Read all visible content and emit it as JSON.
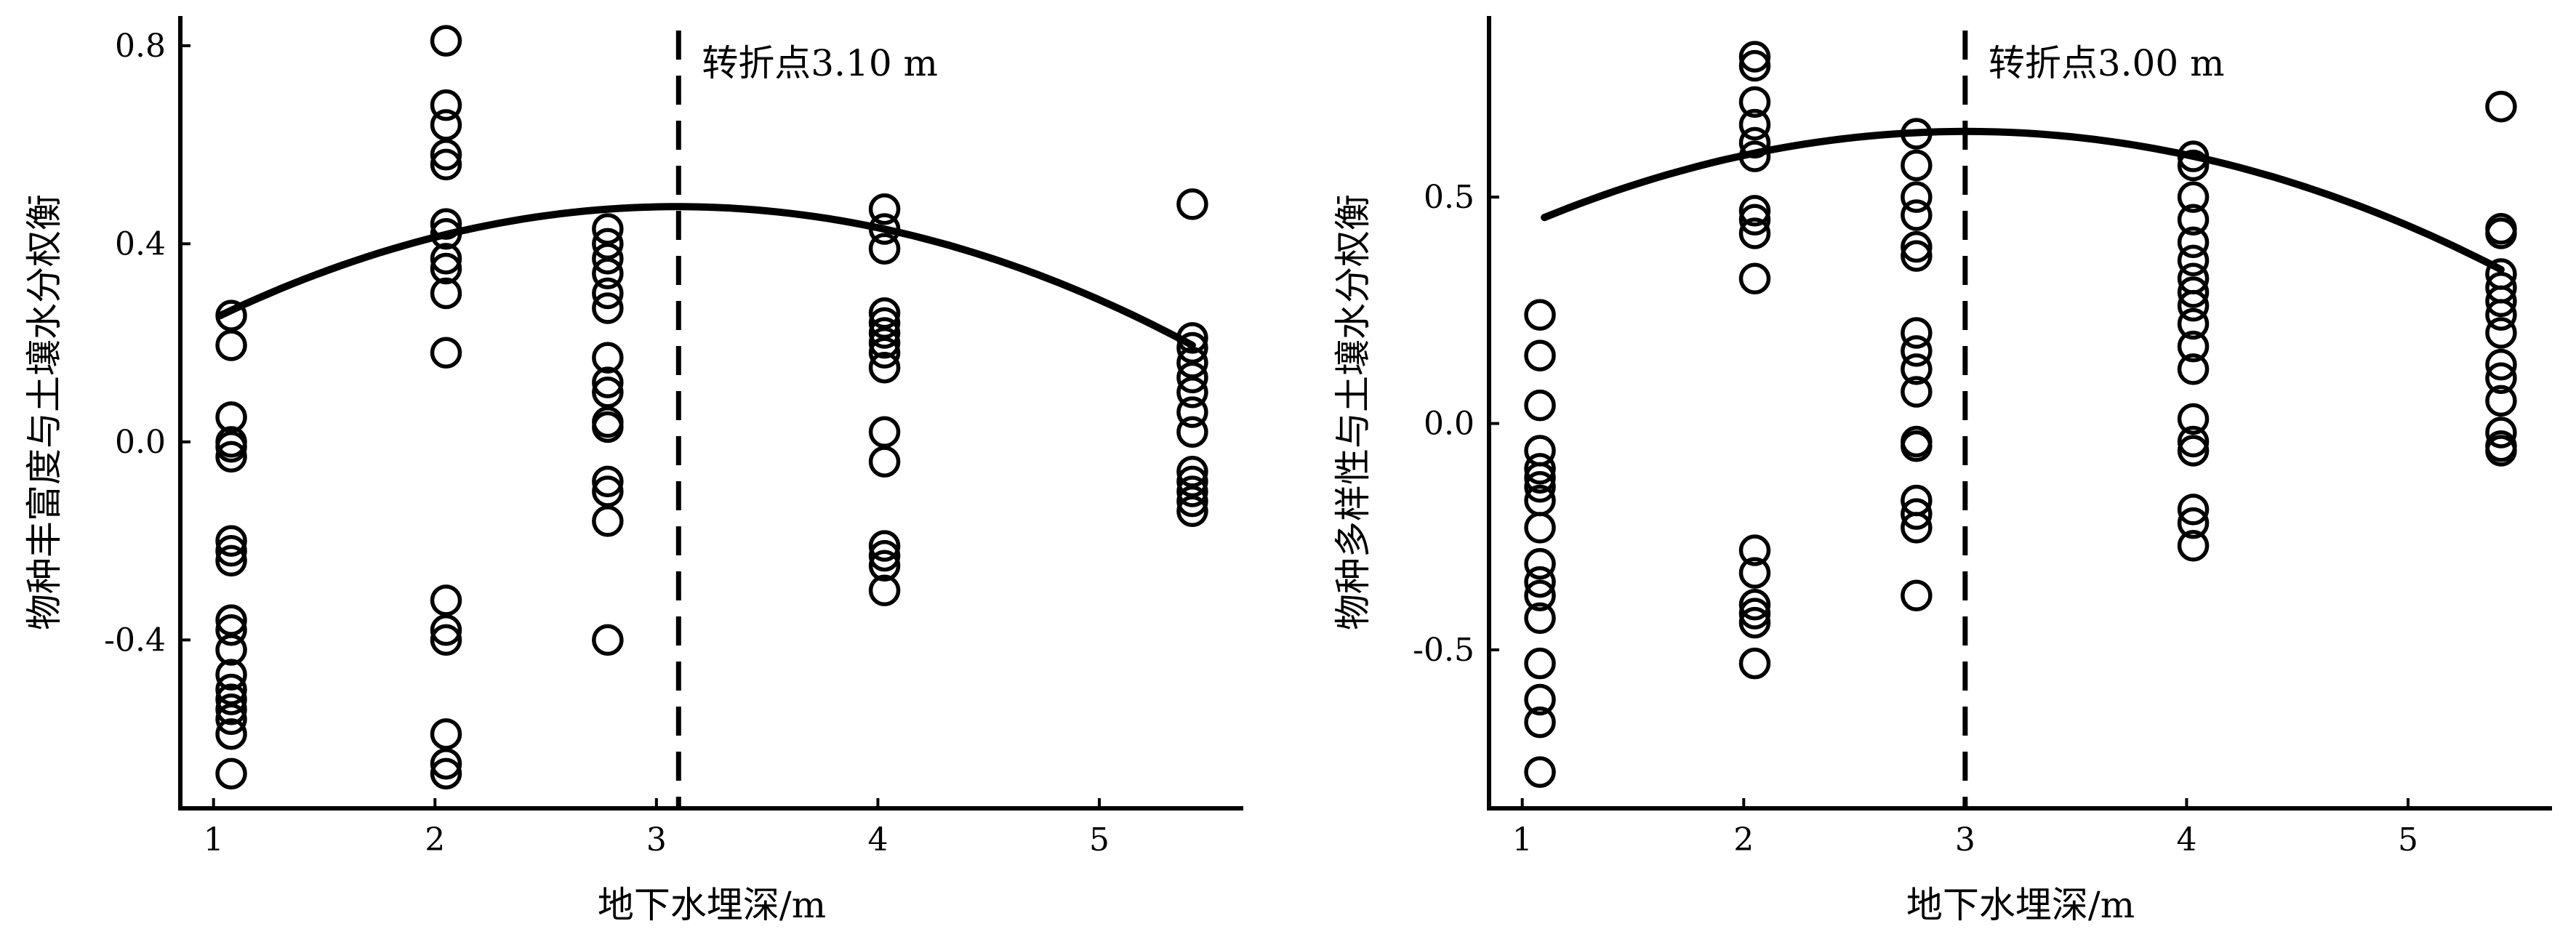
{
  "chart_data": [
    {
      "type": "scatter",
      "xlabel": "地下水埋深/m",
      "ylabel": "物种丰富度与土壤水分权衡",
      "xlim": [
        0.85,
        5.65
      ],
      "ylim": [
        -0.74,
        0.86
      ],
      "xticks": [
        "1",
        "2",
        "3",
        "4",
        "5"
      ],
      "yticks": [
        "0.8",
        "0.4",
        "0.0",
        "-0.4"
      ],
      "ytick_values": [
        0.8,
        0.4,
        0.0,
        -0.4
      ],
      "xtick_values": [
        1,
        2,
        3,
        4,
        5
      ],
      "threshold": {
        "x": 3.1,
        "label": "转折点3.10 m",
        "style": "dashed"
      },
      "fit": {
        "type": "quadratic",
        "x": [
          1.03,
          3.1,
          5.42
        ],
        "y": [
          0.255,
          0.475,
          0.195
        ]
      },
      "points": [
        {
          "x": 1.08,
          "y": [
            0.255,
            0.195,
            0.05,
            0.0,
            -0.01,
            -0.03,
            -0.2,
            -0.22,
            -0.24,
            -0.36,
            -0.38,
            -0.42,
            -0.47,
            -0.5,
            -0.52,
            -0.54,
            -0.56,
            -0.59,
            -0.67
          ]
        },
        {
          "x": 2.05,
          "y": [
            0.81,
            0.68,
            0.64,
            0.58,
            0.56,
            0.44,
            0.42,
            0.37,
            0.35,
            0.3,
            0.18,
            -0.32,
            -0.38,
            -0.4,
            -0.59,
            -0.65,
            -0.67
          ]
        },
        {
          "x": 2.78,
          "y": [
            0.43,
            0.4,
            0.37,
            0.34,
            0.3,
            0.27,
            0.17,
            0.12,
            0.1,
            0.04,
            0.03,
            -0.08,
            -0.1,
            -0.16,
            -0.4
          ]
        },
        {
          "x": 4.03,
          "y": [
            0.47,
            0.43,
            0.39,
            0.26,
            0.24,
            0.22,
            0.2,
            0.18,
            0.15,
            0.02,
            -0.04,
            -0.21,
            -0.23,
            -0.25,
            -0.3
          ]
        },
        {
          "x": 5.42,
          "y": [
            0.48,
            0.21,
            0.19,
            0.16,
            0.13,
            0.1,
            0.06,
            0.02,
            -0.06,
            -0.08,
            -0.1,
            -0.12,
            -0.14
          ]
        }
      ]
    },
    {
      "type": "scatter",
      "xlabel": "地下水埋深/m",
      "ylabel": "物种多样性与土壤水分权衡",
      "xlim": [
        0.85,
        5.65
      ],
      "ylim": [
        -0.85,
        0.9
      ],
      "xticks": [
        "1",
        "2",
        "3",
        "4",
        "5"
      ],
      "yticks": [
        "0.5",
        "0.0",
        "-0.5"
      ],
      "ytick_values": [
        0.5,
        0.0,
        -0.5
      ],
      "xtick_values": [
        1,
        2,
        3,
        4,
        5
      ],
      "threshold": {
        "x": 3.0,
        "label": "转折点3.00 m",
        "style": "dashed"
      },
      "fit": {
        "type": "quadratic",
        "x": [
          1.1,
          3.0,
          5.42
        ],
        "y": [
          0.455,
          0.645,
          0.34
        ]
      },
      "points": [
        {
          "x": 1.08,
          "y": [
            0.24,
            0.15,
            0.04,
            -0.06,
            -0.1,
            -0.12,
            -0.14,
            -0.17,
            -0.23,
            -0.31,
            -0.35,
            -0.38,
            -0.43,
            -0.53,
            -0.61,
            -0.66,
            -0.77
          ]
        },
        {
          "x": 2.05,
          "y": [
            0.81,
            0.79,
            0.71,
            0.66,
            0.62,
            0.59,
            0.47,
            0.45,
            0.42,
            0.32,
            -0.28,
            -0.33,
            -0.4,
            -0.42,
            -0.44,
            -0.53
          ]
        },
        {
          "x": 2.78,
          "y": [
            0.64,
            0.57,
            0.5,
            0.46,
            0.39,
            0.37,
            0.2,
            0.16,
            0.12,
            0.07,
            -0.04,
            -0.05,
            -0.17,
            -0.2,
            -0.23,
            -0.38
          ]
        },
        {
          "x": 4.03,
          "y": [
            0.59,
            0.57,
            0.5,
            0.45,
            0.4,
            0.36,
            0.32,
            0.29,
            0.26,
            0.22,
            0.17,
            0.12,
            0.01,
            -0.04,
            -0.06,
            -0.19,
            -0.22,
            -0.27
          ]
        },
        {
          "x": 5.42,
          "y": [
            0.7,
            0.43,
            0.42,
            0.33,
            0.3,
            0.27,
            0.24,
            0.2,
            0.13,
            0.1,
            0.05,
            -0.02,
            -0.05,
            -0.06
          ]
        }
      ]
    }
  ]
}
